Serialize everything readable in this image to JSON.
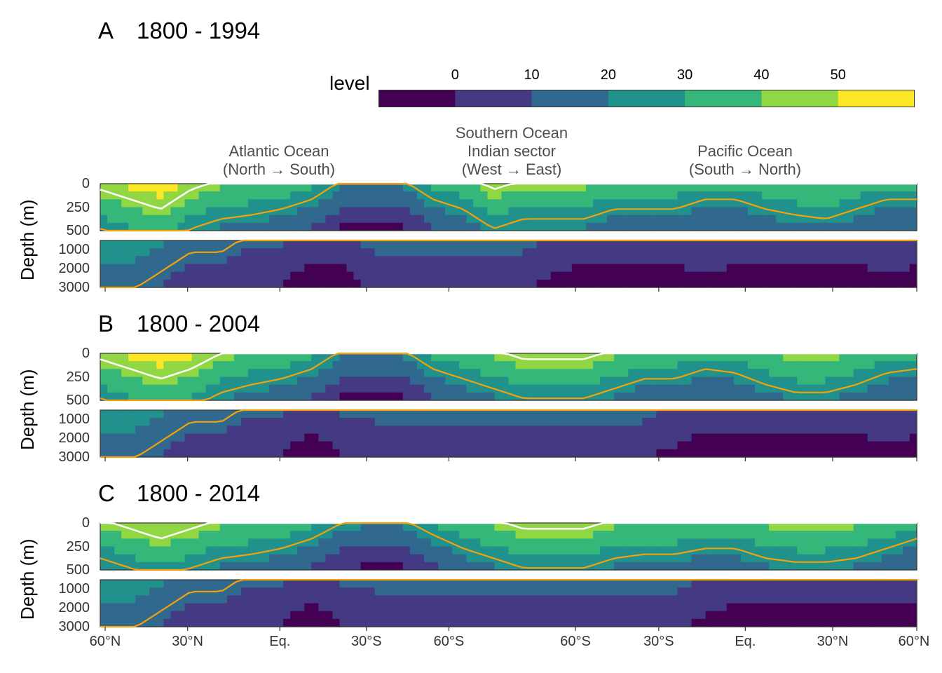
{
  "chart_data": {
    "type": "heatmap",
    "colorbar": {
      "title": "level",
      "tick_labels": [
        "0",
        "10",
        "20",
        "30",
        "40",
        "50"
      ],
      "bin_colors": [
        "#440154",
        "#443983",
        "#31688e",
        "#21918c",
        "#35b779",
        "#90d743",
        "#fde725"
      ]
    },
    "contour_colors": {
      "white": "#ffffff",
      "orange": "#f5a10a"
    },
    "basin_labels": [
      "Atlantic Ocean\n(North → South)",
      "Southern Ocean\nIndian sector\n(West → East)",
      "Pacific Ocean\n(South → North)"
    ],
    "x_tick_labels": [
      "60°N",
      "30°N",
      "Eq.",
      "30°S",
      "60°S",
      "60°S",
      "30°S",
      "Eq.",
      "30°N",
      "60°N"
    ],
    "upper_depth_ticks": [
      "0",
      "250",
      "500"
    ],
    "lower_depth_ticks": [
      "1000",
      "2000",
      "3000"
    ],
    "ylabel": "Depth (m)",
    "upper_depth_range": [
      0,
      500
    ],
    "lower_depth_range": [
      500,
      3000
    ],
    "panels": [
      {
        "tag": "A",
        "period": "1800 - 1994",
        "upper_levels": [
          45,
          50,
          55,
          45,
          40,
          38,
          35,
          30,
          20,
          18,
          20,
          30,
          35,
          45,
          40,
          40,
          40,
          35,
          35,
          35,
          30,
          30,
          35,
          38,
          40,
          35,
          30,
          30
        ],
        "lower_levels": [
          25,
          25,
          20,
          15,
          15,
          10,
          10,
          5,
          5,
          12,
          12,
          12,
          12,
          12,
          12,
          8,
          5,
          5,
          5,
          5,
          8,
          5,
          5,
          5,
          5,
          5,
          8,
          5
        ]
      },
      {
        "tag": "B",
        "period": "1800 - 2004",
        "upper_levels": [
          45,
          50,
          55,
          50,
          42,
          38,
          35,
          30,
          20,
          18,
          20,
          30,
          35,
          40,
          45,
          45,
          45,
          40,
          35,
          35,
          30,
          32,
          38,
          42,
          42,
          38,
          32,
          30
        ],
        "lower_levels": [
          25,
          25,
          20,
          15,
          15,
          10,
          10,
          5,
          10,
          12,
          12,
          12,
          12,
          12,
          12,
          12,
          12,
          12,
          12,
          8,
          5,
          5,
          5,
          5,
          5,
          5,
          8,
          5
        ]
      },
      {
        "tag": "C",
        "period": "1800 - 2014",
        "upper_levels": [
          40,
          45,
          50,
          45,
          40,
          38,
          35,
          30,
          22,
          18,
          20,
          28,
          35,
          40,
          45,
          45,
          45,
          40,
          38,
          38,
          35,
          35,
          40,
          42,
          42,
          40,
          35,
          30
        ],
        "lower_levels": [
          25,
          25,
          20,
          15,
          15,
          10,
          10,
          5,
          10,
          12,
          12,
          12,
          12,
          12,
          12,
          12,
          12,
          12,
          12,
          12,
          8,
          5,
          5,
          5,
          5,
          5,
          5,
          5
        ]
      }
    ]
  }
}
